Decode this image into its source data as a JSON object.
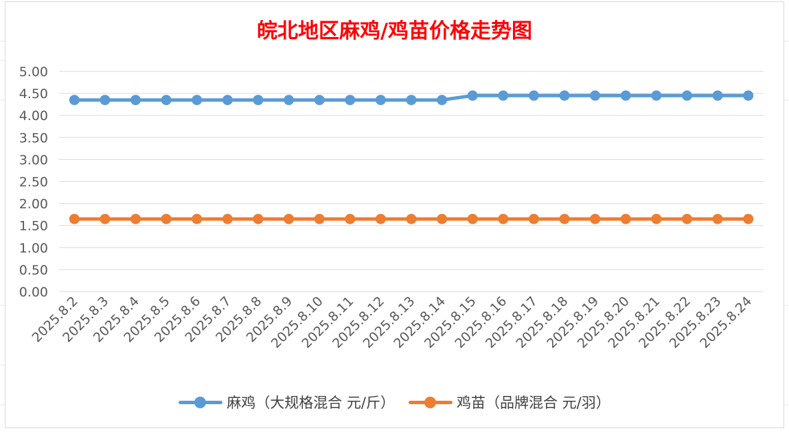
{
  "chart_data": {
    "type": "line",
    "title": "皖北地区麻鸡/鸡苗价格走势图",
    "categories": [
      "2025.8.2",
      "2025.8.3",
      "2025.8.4",
      "2025.8.5",
      "2025.8.6",
      "2025.8.7",
      "2025.8.8",
      "2025.8.9",
      "2025.8.10",
      "2025.8.11",
      "2025.8.12",
      "2025.8.13",
      "2025.8.14",
      "2025.8.15",
      "2025.8.16",
      "2025.8.17",
      "2025.8.18",
      "2025.8.19",
      "2025.8.20",
      "2025.8.21",
      "2025.8.22",
      "2025.8.23",
      "2025.8.24"
    ],
    "series": [
      {
        "name": "麻鸡（大规格混合 元/斤）",
        "color": "#5b9bd5",
        "values": [
          4.35,
          4.35,
          4.35,
          4.35,
          4.35,
          4.35,
          4.35,
          4.35,
          4.35,
          4.35,
          4.35,
          4.35,
          4.35,
          4.45,
          4.45,
          4.45,
          4.45,
          4.45,
          4.45,
          4.45,
          4.45,
          4.45,
          4.45
        ]
      },
      {
        "name": "鸡苗（品牌混合 元/羽）",
        "color": "#ed7d31",
        "values": [
          1.65,
          1.65,
          1.65,
          1.65,
          1.65,
          1.65,
          1.65,
          1.65,
          1.65,
          1.65,
          1.65,
          1.65,
          1.65,
          1.65,
          1.65,
          1.65,
          1.65,
          1.65,
          1.65,
          1.65,
          1.65,
          1.65,
          1.65
        ]
      }
    ],
    "yticks": [
      "0.00",
      "0.50",
      "1.00",
      "1.50",
      "2.00",
      "2.50",
      "3.00",
      "3.50",
      "4.00",
      "4.50",
      "5.00"
    ],
    "ylim": [
      0,
      5
    ],
    "grid": true,
    "legend_position": "bottom",
    "title_color": "#ff0000"
  }
}
